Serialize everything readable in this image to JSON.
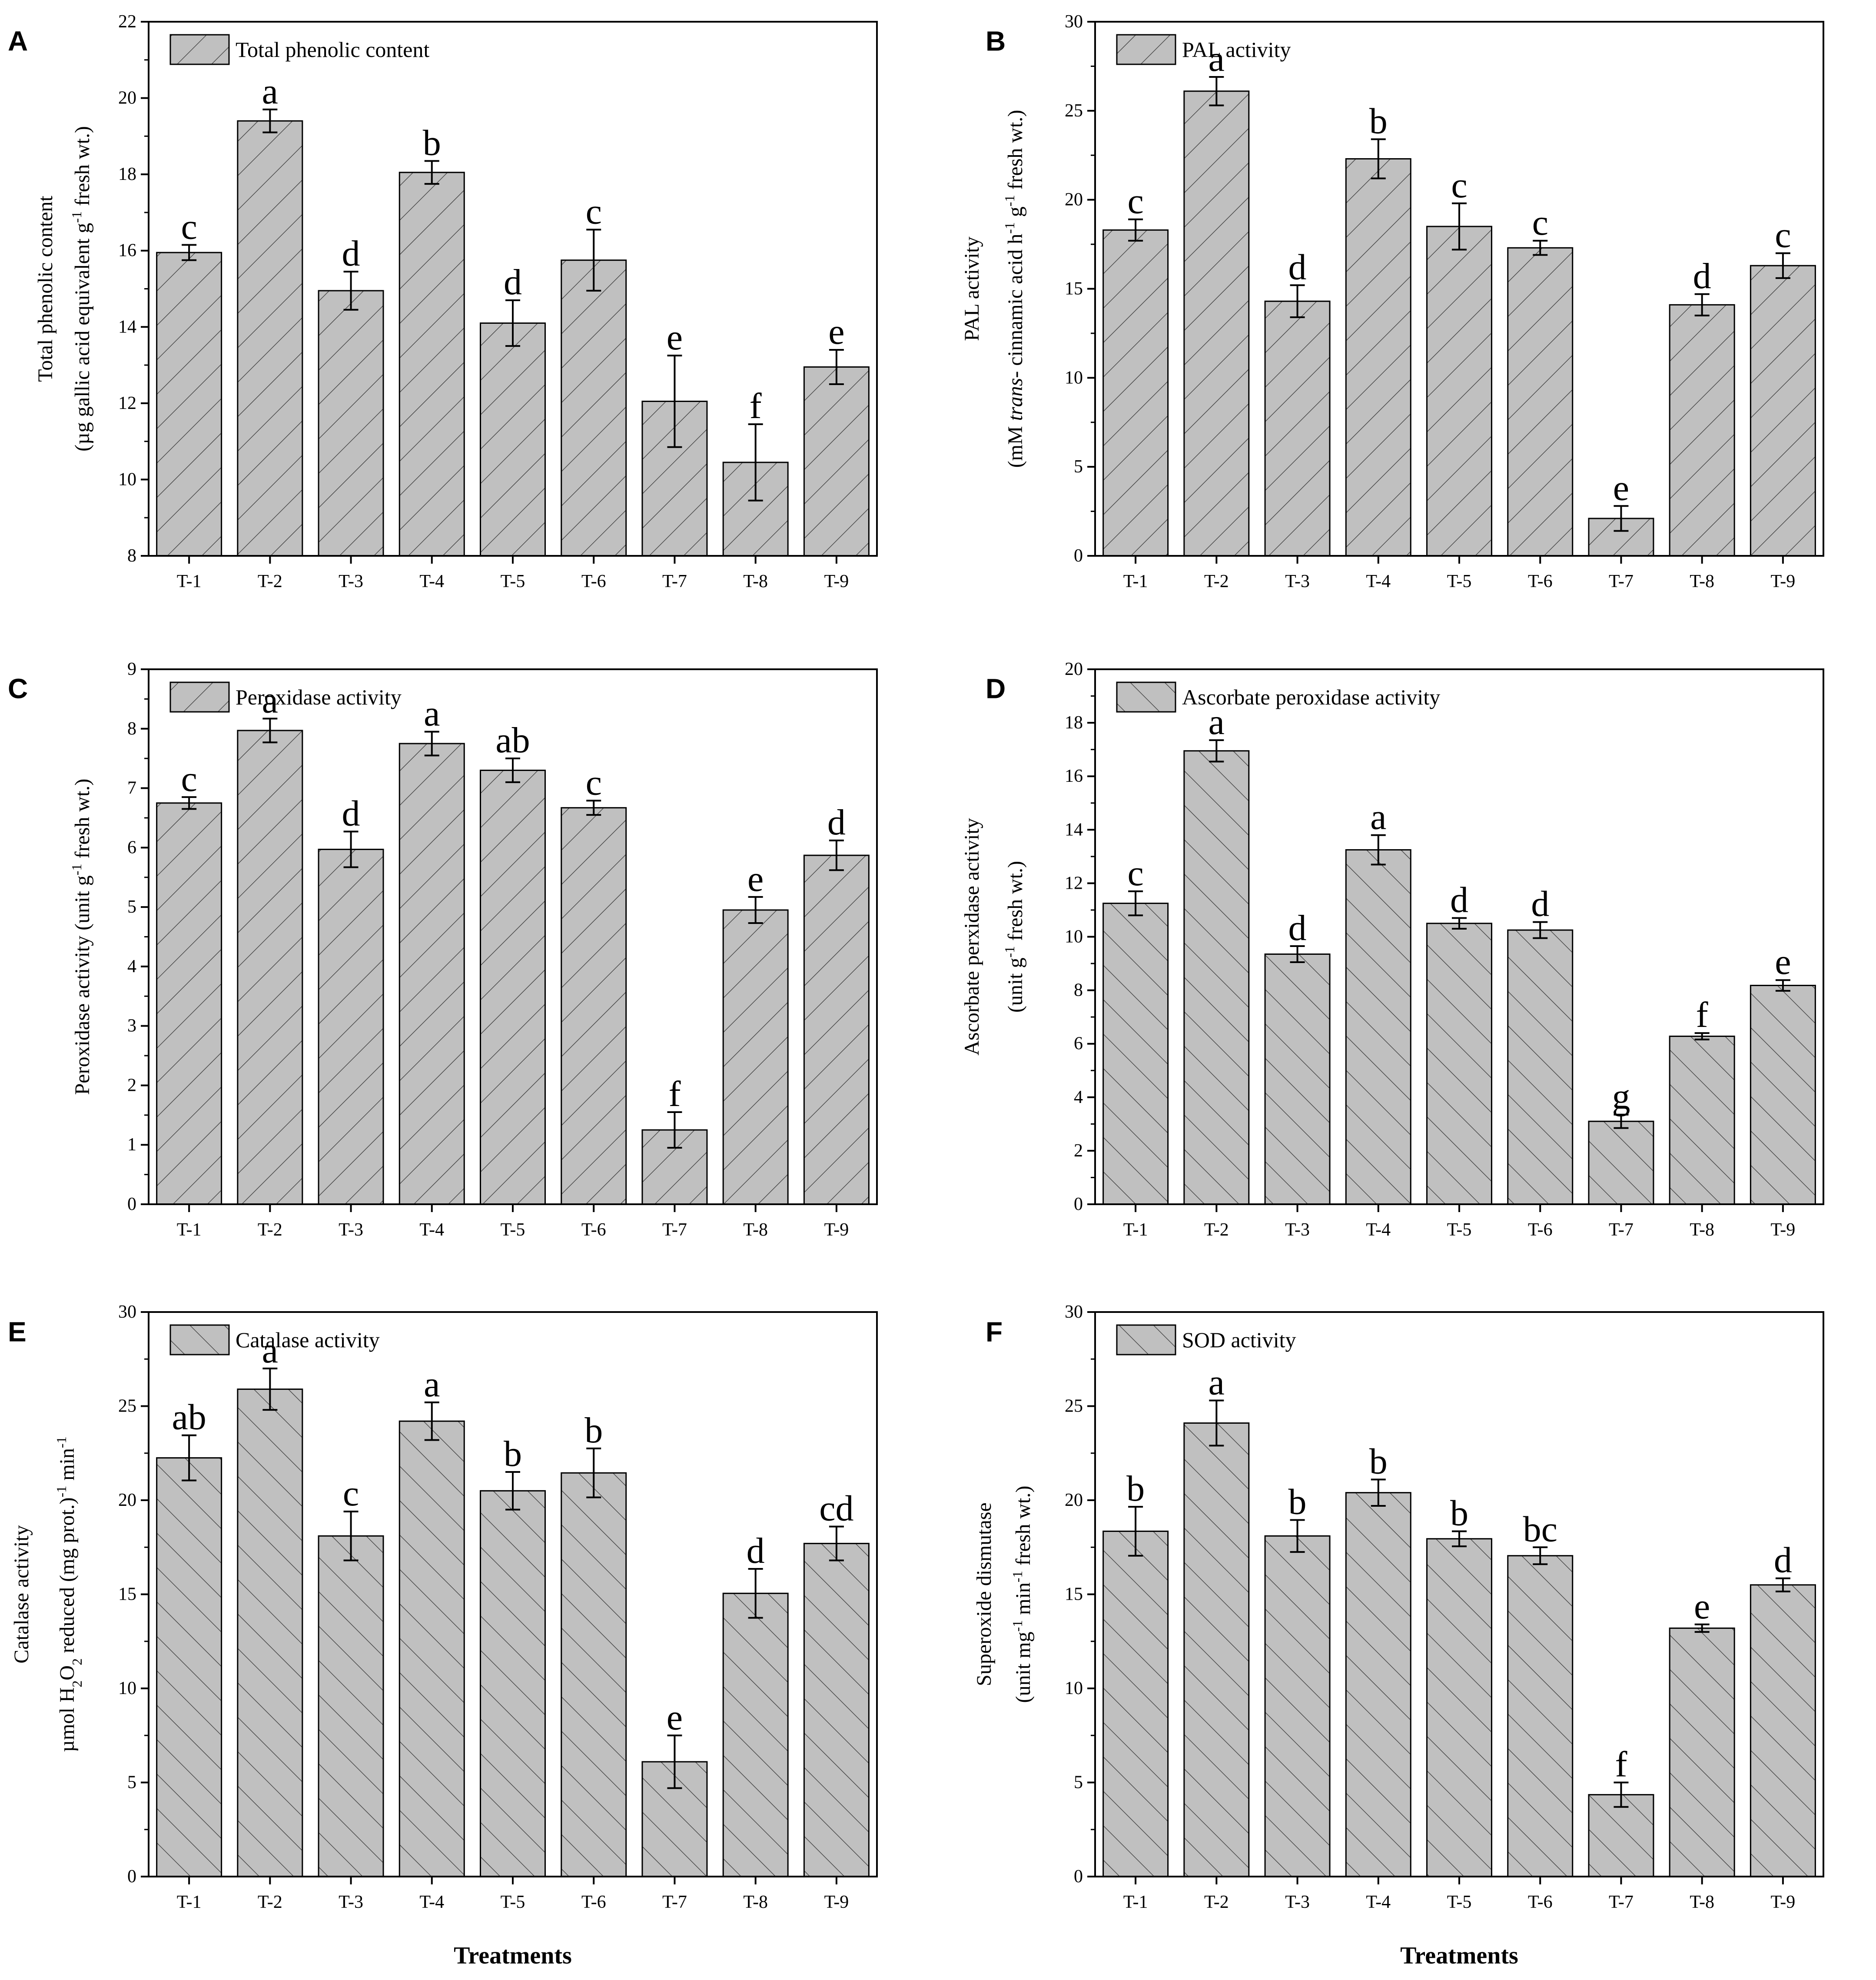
{
  "colors": {
    "bar_fill": "#c0c0c0",
    "bar_stroke": "#000000",
    "hatch": "#4a4a4a",
    "background": "#ffffff"
  },
  "chart_data": [
    {
      "panel": "A",
      "type": "bar",
      "hatch": "forward",
      "legend": "Total phenolic content",
      "ylabel_lines": [
        [
          {
            "t": "Total phenolic content"
          }
        ],
        [
          {
            "t": "(µg gallic acid equivalent g"
          },
          {
            "t": "-1",
            "sup": true
          },
          {
            "t": " fresh wt.)"
          }
        ]
      ],
      "xlabel": "",
      "categories": [
        "T-1",
        "T-2",
        "T-3",
        "T-4",
        "T-5",
        "T-6",
        "T-7",
        "T-8",
        "T-9"
      ],
      "values": [
        15.95,
        19.4,
        14.95,
        18.05,
        14.1,
        15.75,
        12.05,
        10.45,
        12.95
      ],
      "errors": [
        0.2,
        0.3,
        0.5,
        0.3,
        0.6,
        0.8,
        1.2,
        1.0,
        0.45
      ],
      "letters": [
        "c",
        "a",
        "d",
        "b",
        "d",
        "c",
        "e",
        "f",
        "e"
      ],
      "ylim": [
        8,
        22
      ],
      "yticks": [
        8,
        10,
        12,
        14,
        16,
        18,
        20,
        22
      ]
    },
    {
      "panel": "B",
      "type": "bar",
      "hatch": "forward",
      "legend": "PAL activity",
      "ylabel_lines": [
        [
          {
            "t": "PAL activity"
          }
        ],
        [
          {
            "t": "(mM "
          },
          {
            "t": "trans",
            "it": true
          },
          {
            "t": "- cinnamic acid h"
          },
          {
            "t": "-1",
            "sup": true
          },
          {
            "t": " g"
          },
          {
            "t": "-1",
            "sup": true
          },
          {
            "t": " fresh wt.)"
          }
        ]
      ],
      "xlabel": "",
      "categories": [
        "T-1",
        "T-2",
        "T-3",
        "T-4",
        "T-5",
        "T-6",
        "T-7",
        "T-8",
        "T-9"
      ],
      "values": [
        18.3,
        26.1,
        14.3,
        22.3,
        18.5,
        17.3,
        2.1,
        14.1,
        16.3
      ],
      "errors": [
        0.6,
        0.8,
        0.9,
        1.1,
        1.3,
        0.4,
        0.7,
        0.6,
        0.7
      ],
      "letters": [
        "c",
        "a",
        "d",
        "b",
        "c",
        "c",
        "e",
        "d",
        "c"
      ],
      "ylim": [
        0,
        30
      ],
      "yticks": [
        0,
        5,
        10,
        15,
        20,
        25,
        30
      ]
    },
    {
      "panel": "C",
      "type": "bar",
      "hatch": "forward",
      "legend": "Peroxidase activity",
      "ylabel_lines": [
        [
          {
            "t": "Peroxidase activity (unit g"
          },
          {
            "t": "-1",
            "sup": true
          },
          {
            "t": " fresh wt.)"
          }
        ]
      ],
      "xlabel": "",
      "categories": [
        "T-1",
        "T-2",
        "T-3",
        "T-4",
        "T-5",
        "T-6",
        "T-7",
        "T-8",
        "T-9"
      ],
      "values": [
        6.75,
        7.97,
        5.97,
        7.75,
        7.3,
        6.67,
        1.25,
        4.95,
        5.87
      ],
      "errors": [
        0.1,
        0.2,
        0.3,
        0.2,
        0.2,
        0.12,
        0.3,
        0.22,
        0.25
      ],
      "letters": [
        "c",
        "a",
        "d",
        "a",
        "ab",
        "c",
        "f",
        "e",
        "d"
      ],
      "ylim": [
        0,
        9
      ],
      "yticks": [
        0,
        1,
        2,
        3,
        4,
        5,
        6,
        7,
        8,
        9
      ]
    },
    {
      "panel": "D",
      "type": "bar",
      "hatch": "back",
      "legend": "Ascorbate peroxidase activity",
      "ylabel_lines": [
        [
          {
            "t": "Ascorbate perxidase activity"
          }
        ],
        [
          {
            "t": "(unit g"
          },
          {
            "t": "-1",
            "sup": true
          },
          {
            "t": " fresh wt.)"
          }
        ]
      ],
      "xlabel": "",
      "categories": [
        "T-1",
        "T-2",
        "T-3",
        "T-4",
        "T-5",
        "T-6",
        "T-7",
        "T-8",
        "T-9"
      ],
      "values": [
        11.25,
        16.95,
        9.35,
        13.25,
        10.5,
        10.25,
        3.1,
        6.28,
        8.18
      ],
      "errors": [
        0.45,
        0.4,
        0.3,
        0.55,
        0.2,
        0.3,
        0.25,
        0.12,
        0.2
      ],
      "letters": [
        "c",
        "a",
        "d",
        "a",
        "d",
        "d",
        "g",
        "f",
        "e"
      ],
      "ylim": [
        0,
        20
      ],
      "yticks": [
        0,
        2,
        4,
        6,
        8,
        10,
        12,
        14,
        16,
        18,
        20
      ]
    },
    {
      "panel": "E",
      "type": "bar",
      "hatch": "back",
      "legend": "Catalase activity",
      "ylabel_lines": [
        [
          {
            "t": "Catalase activity"
          }
        ],
        [
          {
            "t": "µmol H"
          },
          {
            "t": "2",
            "sub": true
          },
          {
            "t": "O"
          },
          {
            "t": "2",
            "sub": true
          },
          {
            "t": " reduced (mg prot.)"
          },
          {
            "t": "-1",
            "sup": true
          },
          {
            "t": " min"
          },
          {
            "t": "-1",
            "sup": true
          }
        ]
      ],
      "xlabel": "Treatments",
      "categories": [
        "T-1",
        "T-2",
        "T-3",
        "T-4",
        "T-5",
        "T-6",
        "T-7",
        "T-8",
        "T-9"
      ],
      "values": [
        22.25,
        25.9,
        18.1,
        24.2,
        20.5,
        21.45,
        6.1,
        15.05,
        17.7
      ],
      "errors": [
        1.2,
        1.1,
        1.3,
        1.0,
        1.0,
        1.3,
        1.4,
        1.3,
        0.9
      ],
      "letters": [
        "ab",
        "a",
        "c",
        "a",
        "b",
        "b",
        "e",
        "d",
        "cd"
      ],
      "ylim": [
        0,
        30
      ],
      "yticks": [
        0,
        5,
        10,
        15,
        20,
        25,
        30
      ]
    },
    {
      "panel": "F",
      "type": "bar",
      "hatch": "back",
      "legend": "SOD activity",
      "ylabel_lines": [
        [
          {
            "t": "Superoxide dismutase"
          }
        ],
        [
          {
            "t": "(unit mg"
          },
          {
            "t": "-1",
            "sup": true
          },
          {
            "t": " min"
          },
          {
            "t": "-1",
            "sup": true
          },
          {
            "t": " fresh wt.)"
          }
        ]
      ],
      "xlabel": "Treatments",
      "categories": [
        "T-1",
        "T-2",
        "T-3",
        "T-4",
        "T-5",
        "T-6",
        "T-7",
        "T-8",
        "T-9"
      ],
      "values": [
        18.35,
        24.1,
        18.1,
        20.4,
        17.95,
        17.05,
        4.35,
        13.2,
        15.5
      ],
      "errors": [
        1.3,
        1.2,
        0.85,
        0.7,
        0.4,
        0.45,
        0.65,
        0.2,
        0.35
      ],
      "letters": [
        "b",
        "a",
        "b",
        "b",
        "b",
        "bc",
        "f",
        "e",
        "d"
      ],
      "ylim": [
        0,
        30
      ],
      "yticks": [
        0,
        5,
        10,
        15,
        20,
        25,
        30
      ]
    }
  ]
}
